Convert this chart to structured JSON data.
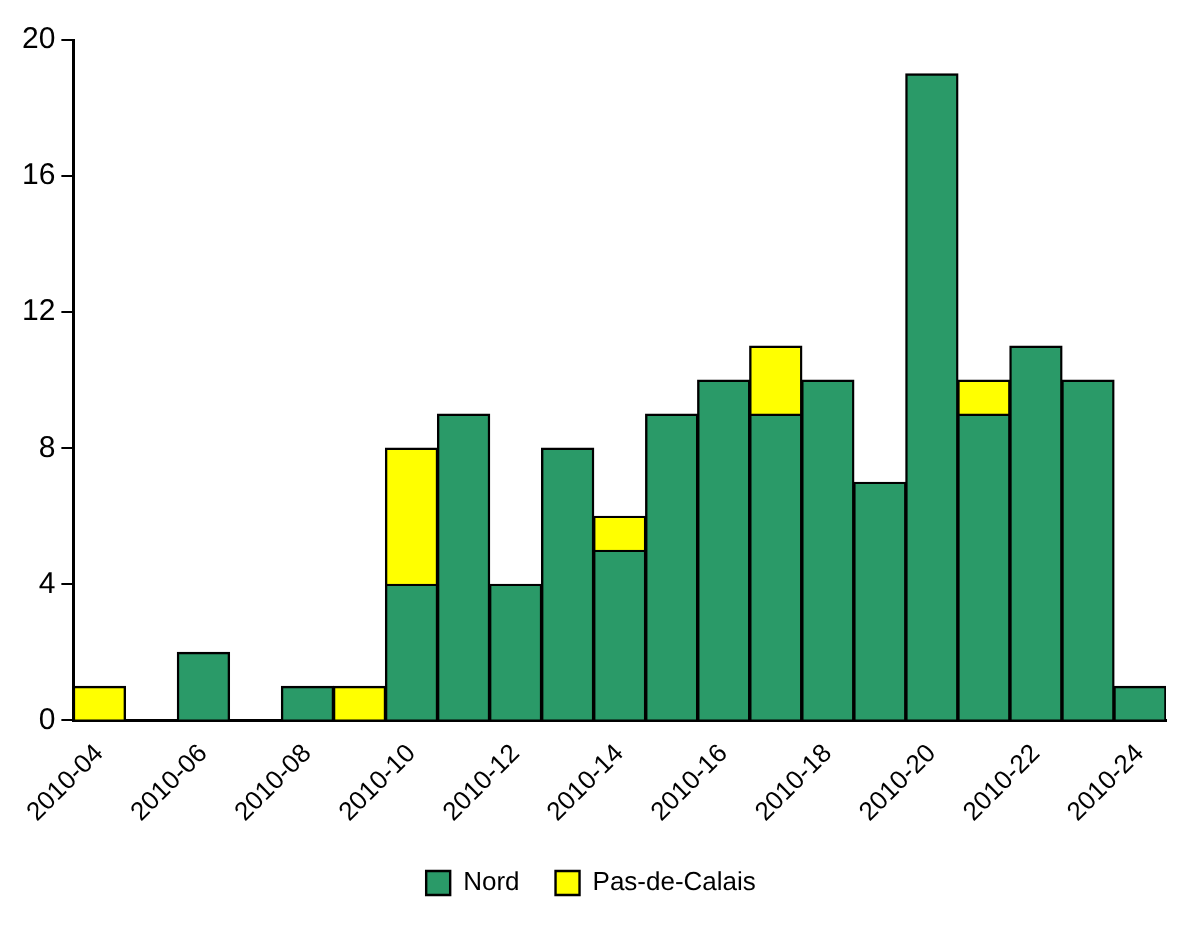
{
  "chart_data": {
    "type": "bar",
    "stacked": true,
    "categories": [
      "2010-04",
      null,
      "2010-06",
      null,
      "2010-08",
      null,
      "2010-10",
      null,
      "2010-12",
      null,
      "2010-14",
      null,
      "2010-16",
      null,
      "2010-18",
      null,
      "2010-20",
      null,
      "2010-22",
      null,
      "2010-24"
    ],
    "series": [
      {
        "name": "Nord",
        "color": "#2a9a68",
        "values": [
          0,
          0,
          2,
          0,
          1,
          0,
          4,
          9,
          4,
          8,
          5,
          9,
          10,
          9,
          10,
          7,
          19,
          9,
          11,
          10,
          1
        ]
      },
      {
        "name": "Pas-de-Calais",
        "color": "#ffff00",
        "values": [
          1,
          0,
          0,
          0,
          0,
          1,
          4,
          0,
          0,
          0,
          1,
          0,
          0,
          2,
          0,
          0,
          0,
          1,
          0,
          0,
          0
        ]
      }
    ],
    "ylim": [
      0,
      20
    ],
    "yticks": [
      0,
      4,
      8,
      12,
      16,
      20
    ],
    "grid": false,
    "legend": "bottom"
  }
}
